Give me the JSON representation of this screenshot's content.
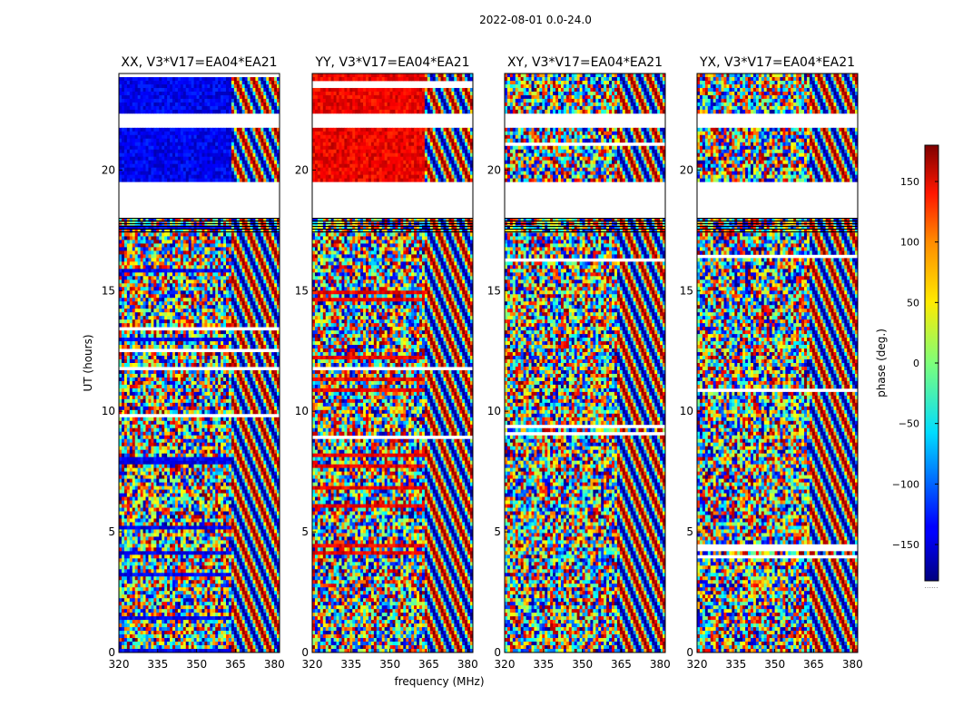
{
  "figure": {
    "suptitle": "2022-08-01 0.0-24.0",
    "xlabel": "frequency (MHz)",
    "ylabel": "UT (hours)",
    "colorbar_label": "phase (deg.)",
    "colorbar_extra": "......"
  },
  "chart_data": {
    "type": "heatmap",
    "colormap": "jet",
    "value_label": "phase (deg.)",
    "clim": [
      -180,
      180
    ],
    "colorbar_ticks": [
      150,
      100,
      50,
      0,
      -50,
      -100,
      -150
    ],
    "colorbar_tick_labels": [
      "150",
      "100",
      "50",
      "0",
      "−50",
      "−100",
      "−150"
    ],
    "xlim": [
      320,
      382
    ],
    "ylim": [
      0,
      24
    ],
    "xticks": [
      320,
      335,
      350,
      365,
      380
    ],
    "xtick_labels": [
      "320",
      "335",
      "350",
      "365",
      "380"
    ],
    "yticks": [
      0,
      5,
      10,
      15,
      20
    ],
    "ytick_labels": [
      "0",
      "5",
      "10",
      "15",
      "20"
    ],
    "gap_hours": [
      [
        18.0,
        19.5
      ],
      [
        21.8,
        22.3
      ]
    ],
    "panels": [
      {
        "title": "XX, V3*V17=EA04*EA21",
        "dominant_phase_deg": -140
      },
      {
        "title": "YY, V3*V17=EA04*EA21",
        "dominant_phase_deg": 140
      },
      {
        "title": "XY, V3*V17=EA04*EA21",
        "dominant_phase_deg": null
      },
      {
        "title": "YX, V3*V17=EA04*EA21",
        "dominant_phase_deg": null
      }
    ]
  }
}
